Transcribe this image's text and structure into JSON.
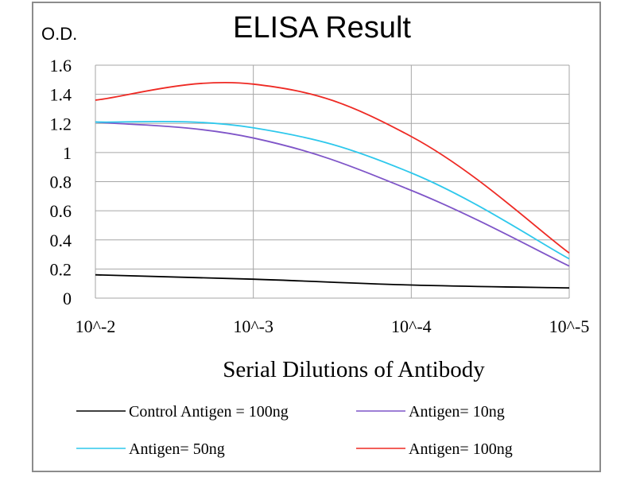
{
  "chart_data": {
    "type": "line",
    "title": "ELISA Result",
    "ylabel": "O.D.",
    "xlabel": "Serial Dilutions  of Antibody",
    "x_categories": [
      "10^-2",
      "10^-3",
      "10^-4",
      "10^-5"
    ],
    "y_ticks": [
      "0",
      "0.2",
      "0.4",
      "0.6",
      "0.8",
      "1",
      "1.2",
      "1.4",
      "1.6"
    ],
    "ylim": [
      0,
      1.6
    ],
    "grid": true,
    "legend_position": "bottom",
    "series": [
      {
        "name": "Control Antigen = 100ng",
        "color": "#000000",
        "values": [
          0.16,
          0.13,
          0.09,
          0.07
        ]
      },
      {
        "name": "Antigen= 10ng",
        "color": "#7f55c8",
        "values": [
          1.21,
          1.1,
          0.74,
          0.22
        ]
      },
      {
        "name": "Antigen= 50ng",
        "color": "#2ec8ec",
        "values": [
          1.21,
          1.17,
          0.86,
          0.27
        ]
      },
      {
        "name": "Antigen= 100ng",
        "color": "#ee2a24",
        "values": [
          1.36,
          1.47,
          1.11,
          0.31
        ]
      }
    ]
  }
}
